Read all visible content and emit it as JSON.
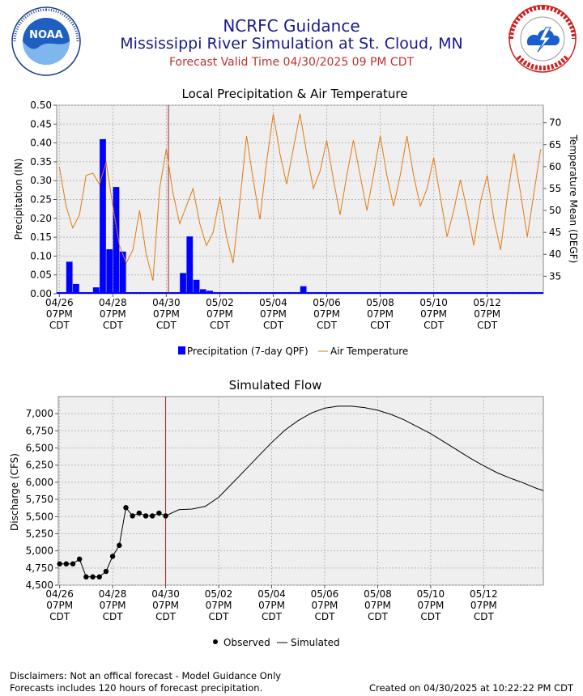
{
  "header": {
    "title": "NCRFC Guidance",
    "subtitle": "Mississippi River Simulation at St. Cloud, MN",
    "valid_time": "Forecast Valid Time 04/30/2025 09 PM CDT"
  },
  "logos": {
    "left": "NOAA",
    "right": "NATIONAL WEATHER SERVICE"
  },
  "footer": {
    "disclaimer": "Disclaimers: Not an offical forecast - Model Guidance Only",
    "qpf_note": "Forecasts includes 120 hours of forecast precipitation.",
    "created": "Created on 04/30/2025 at 10:22:22 PM CDT"
  },
  "chart_data": [
    {
      "type": "bar",
      "title": "Local Precipitation & Air Temperature",
      "ylabel": "Precipitation (IN)",
      "y2label": "Temperature Mean (DEGF)",
      "ylim": [
        0,
        0.5
      ],
      "y2lim": [
        31,
        74
      ],
      "yticks": [
        "0.00",
        "0.05",
        "0.10",
        "0.15",
        "0.20",
        "0.25",
        "0.30",
        "0.35",
        "0.40",
        "0.45",
        "0.50"
      ],
      "y2ticks": [
        35,
        40,
        45,
        50,
        55,
        60,
        65,
        70
      ],
      "xlim_days": [
        -0.1,
        18.1
      ],
      "xticks": [
        {
          "day": 0,
          "l1": "04/26",
          "l2": "07PM",
          "l3": "CDT"
        },
        {
          "day": 2,
          "l1": "04/28",
          "l2": "07PM",
          "l3": "CDT"
        },
        {
          "day": 4,
          "l1": "04/30",
          "l2": "07PM",
          "l3": "CDT"
        },
        {
          "day": 6,
          "l1": "05/02",
          "l2": "07PM",
          "l3": "CDT"
        },
        {
          "day": 8,
          "l1": "05/04",
          "l2": "07PM",
          "l3": "CDT"
        },
        {
          "day": 10,
          "l1": "05/06",
          "l2": "07PM",
          "l3": "CDT"
        },
        {
          "day": 12,
          "l1": "05/08",
          "l2": "07PM",
          "l3": "CDT"
        },
        {
          "day": 14,
          "l1": "05/10",
          "l2": "07PM",
          "l3": "CDT"
        },
        {
          "day": 16,
          "l1": "05/12",
          "l2": "07PM",
          "l3": "CDT"
        }
      ],
      "forecast_line_day": 4.08,
      "series": [
        {
          "name": "Precipitation (7-day QPF)",
          "color": "#0000ff",
          "kind": "bar",
          "x": [
            0.375,
            0.625,
            1.375,
            1.625,
            1.875,
            2.125,
            2.375,
            4.625,
            4.875,
            5.125,
            5.375,
            5.625,
            9.125
          ],
          "values": [
            0.085,
            0.026,
            0.017,
            0.41,
            0.118,
            0.283,
            0.112,
            0.055,
            0.152,
            0.037,
            0.012,
            0.008,
            0.02
          ]
        },
        {
          "name": "Air Temperature",
          "color": "#e07a10",
          "kind": "line",
          "x": [
            0,
            0.25,
            0.5,
            0.75,
            1.0,
            1.25,
            1.5,
            1.75,
            2.0,
            2.25,
            2.5,
            2.75,
            3.0,
            3.25,
            3.5,
            3.75,
            4.0,
            4.25,
            4.5,
            4.75,
            5.0,
            5.25,
            5.5,
            5.75,
            6.0,
            6.25,
            6.5,
            6.75,
            7.0,
            7.25,
            7.5,
            7.75,
            8.0,
            8.25,
            8.5,
            8.75,
            9.0,
            9.25,
            9.5,
            9.75,
            10.0,
            10.25,
            10.5,
            10.75,
            11.0,
            11.25,
            11.5,
            11.75,
            12.0,
            12.25,
            12.5,
            12.75,
            13.0,
            13.25,
            13.5,
            13.75,
            14.0,
            14.25,
            14.5,
            14.75,
            15.0,
            15.25,
            15.5,
            15.75,
            16.0,
            16.25,
            16.5,
            16.75,
            17.0,
            17.25,
            17.5,
            17.75,
            18.0
          ],
          "values": [
            60,
            51,
            46,
            49,
            58,
            58.5,
            56,
            61,
            51,
            42,
            38,
            41,
            50,
            40,
            34,
            55,
            64,
            54,
            47,
            51,
            55,
            47,
            42,
            45,
            53,
            44,
            38,
            52,
            67,
            57,
            48,
            61,
            72,
            63,
            56,
            64,
            72,
            63,
            55,
            59,
            66,
            57,
            49,
            58,
            66,
            58,
            50,
            58,
            67,
            58,
            51,
            58,
            67,
            58,
            51,
            55,
            62,
            53,
            44,
            50,
            57,
            50,
            42,
            52,
            58,
            48,
            41,
            53,
            63,
            54,
            44,
            54,
            64
          ]
        }
      ]
    },
    {
      "type": "line",
      "title": "Simulated Flow",
      "ylabel": "Discharge (CFS)",
      "ylim": [
        4500,
        7250
      ],
      "yticks": [
        "4,500",
        "4,750",
        "5,000",
        "5,250",
        "5,500",
        "5,750",
        "6,000",
        "6,250",
        "6,500",
        "6,750",
        "7,000"
      ],
      "xlim_days": [
        -0.05,
        18.25
      ],
      "forecast_line_day": 4.0,
      "xticks": [
        {
          "day": 0,
          "l1": "04/26",
          "l2": "07PM",
          "l3": "CDT"
        },
        {
          "day": 2,
          "l1": "04/28",
          "l2": "07PM",
          "l3": "CDT"
        },
        {
          "day": 4,
          "l1": "04/30",
          "l2": "07PM",
          "l3": "CDT"
        },
        {
          "day": 6,
          "l1": "05/02",
          "l2": "07PM",
          "l3": "CDT"
        },
        {
          "day": 8,
          "l1": "05/04",
          "l2": "07PM",
          "l3": "CDT"
        },
        {
          "day": 10,
          "l1": "05/06",
          "l2": "07PM",
          "l3": "CDT"
        },
        {
          "day": 12,
          "l1": "05/08",
          "l2": "07PM",
          "l3": "CDT"
        },
        {
          "day": 14,
          "l1": "05/10",
          "l2": "07PM",
          "l3": "CDT"
        },
        {
          "day": 16,
          "l1": "05/12",
          "l2": "07PM",
          "l3": "CDT"
        }
      ],
      "series": [
        {
          "name": "Observed",
          "color": "#000000",
          "kind": "points",
          "x": [
            0,
            0.25,
            0.5,
            0.75,
            1.0,
            1.25,
            1.5,
            1.75,
            2.0,
            2.25,
            2.5,
            2.75,
            3.0,
            3.25,
            3.5,
            3.75,
            4.0
          ],
          "values": [
            4810,
            4810,
            4810,
            4880,
            4620,
            4620,
            4620,
            4700,
            4920,
            5080,
            5630,
            5510,
            5550,
            5510,
            5510,
            5550,
            5510
          ]
        },
        {
          "name": "Simulated",
          "color": "#000000",
          "kind": "line",
          "x": [
            4.0,
            4.5,
            5.0,
            5.5,
            6.0,
            6.5,
            7.0,
            7.5,
            8.0,
            8.5,
            9.0,
            9.5,
            10.0,
            10.5,
            11.0,
            11.5,
            12.0,
            12.5,
            13.0,
            13.5,
            14.0,
            14.5,
            15.0,
            15.5,
            16.0,
            16.5,
            17.0,
            17.5,
            18.0,
            18.25
          ],
          "values": [
            5510,
            5600,
            5610,
            5650,
            5780,
            5980,
            6180,
            6380,
            6580,
            6760,
            6900,
            7010,
            7080,
            7110,
            7110,
            7090,
            7050,
            6990,
            6910,
            6810,
            6710,
            6590,
            6470,
            6350,
            6240,
            6140,
            6060,
            5990,
            5910,
            5880
          ]
        }
      ]
    }
  ]
}
